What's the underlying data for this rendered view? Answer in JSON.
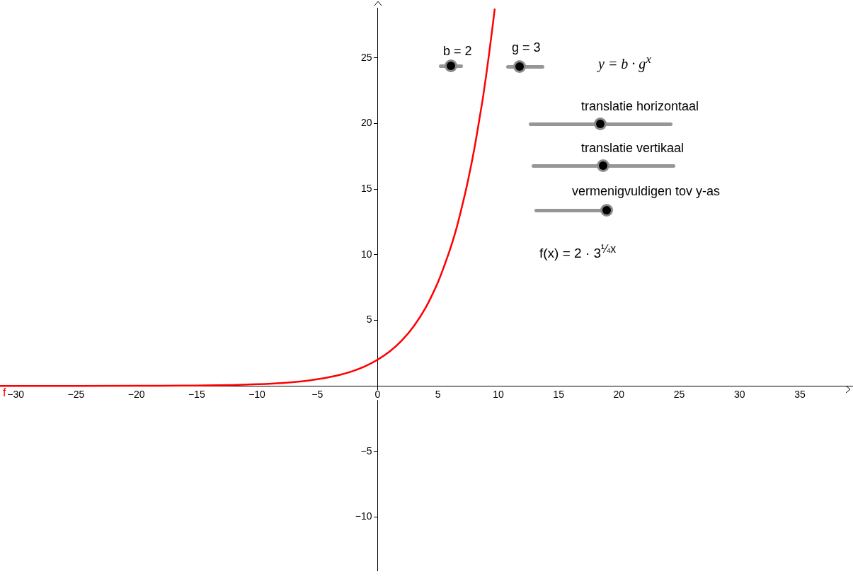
{
  "chart_data": {
    "type": "line",
    "xlim": [
      -31.3,
      39.4
    ],
    "ylim": [
      -14.1,
      28.8
    ],
    "xticks": [
      {
        "value": -30,
        "label": "−30"
      },
      {
        "value": -25,
        "label": "−25"
      },
      {
        "value": -20,
        "label": "−20"
      },
      {
        "value": -15,
        "label": "−15"
      },
      {
        "value": -10,
        "label": "−10"
      },
      {
        "value": -5,
        "label": "−5"
      },
      0,
      5,
      10,
      15,
      20,
      25,
      30,
      35
    ],
    "yticks": [
      {
        "value": -10,
        "label": "−10"
      },
      {
        "value": -5,
        "label": "−5"
      },
      5,
      10,
      15,
      20,
      25
    ],
    "series": [
      {
        "name": "f",
        "color": "#ff0000",
        "x": [
          -31.3,
          -25,
          -20,
          -15,
          -12,
          -10,
          -8,
          -6,
          -5,
          -4,
          -3,
          -2,
          -1,
          0,
          1,
          2,
          3,
          4,
          4.5,
          5,
          5.5,
          6,
          6.5,
          7,
          7.5,
          8,
          8.5,
          8.75,
          9,
          9.25,
          9.5,
          9.7
        ],
        "values": [
          0,
          0,
          0.01,
          0.03,
          0.07,
          0.13,
          0.22,
          0.38,
          0.51,
          0.67,
          0.88,
          1.15,
          1.52,
          2,
          2.63,
          3.46,
          4.56,
          6,
          6.9,
          7.9,
          9.1,
          10.4,
          11.9,
          13.7,
          15.7,
          18,
          20.7,
          22.1,
          23.7,
          25.4,
          27.2,
          28.7
        ]
      }
    ],
    "annotations": [
      "b = 2",
      "g = 3",
      "y = b · g$^{x}$",
      "translatie horizontaal",
      "translatie vertikaal",
      "vermenigvuldigen tov y-as",
      "f(x) = 2 · 3$^{¼x}$"
    ]
  }
}
